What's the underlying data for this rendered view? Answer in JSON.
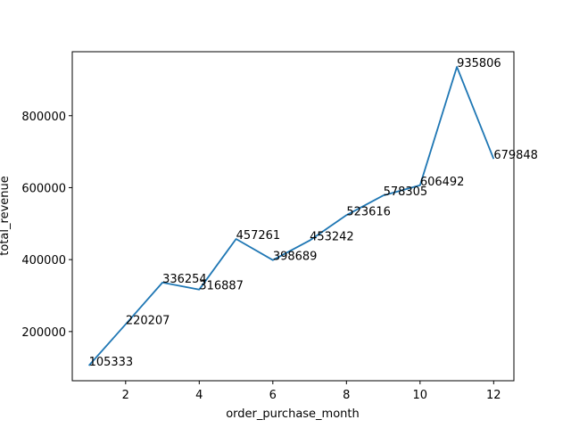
{
  "chart_data": {
    "type": "line",
    "title": "",
    "xlabel": "order_purchase_month",
    "ylabel": "total_revenue",
    "x": [
      1,
      2,
      3,
      4,
      5,
      6,
      7,
      8,
      9,
      10,
      11,
      12
    ],
    "series": [
      {
        "values": [
          105333,
          220207,
          336254,
          316887,
          457261,
          398689,
          453242,
          523616,
          578305,
          606492,
          935806,
          679848
        ],
        "color": "#1f77b4"
      }
    ],
    "data_labels": [
      "105333",
      "220207",
      "336254",
      "316887",
      "457261",
      "398689",
      "453242",
      "523616",
      "578305",
      "606492",
      "935806",
      "679848"
    ],
    "xlim": [
      0.55,
      12.55
    ],
    "ylim": [
      63310,
      977829
    ],
    "x_ticks": [
      2,
      4,
      6,
      8,
      10,
      12
    ],
    "x_tick_labels": [
      "2",
      "4",
      "6",
      "8",
      "10",
      "12"
    ],
    "y_ticks": [
      200000,
      400000,
      600000,
      800000
    ],
    "y_tick_labels": [
      "200000",
      "400000",
      "600000",
      "800000"
    ],
    "grid": false,
    "legend": "none"
  }
}
